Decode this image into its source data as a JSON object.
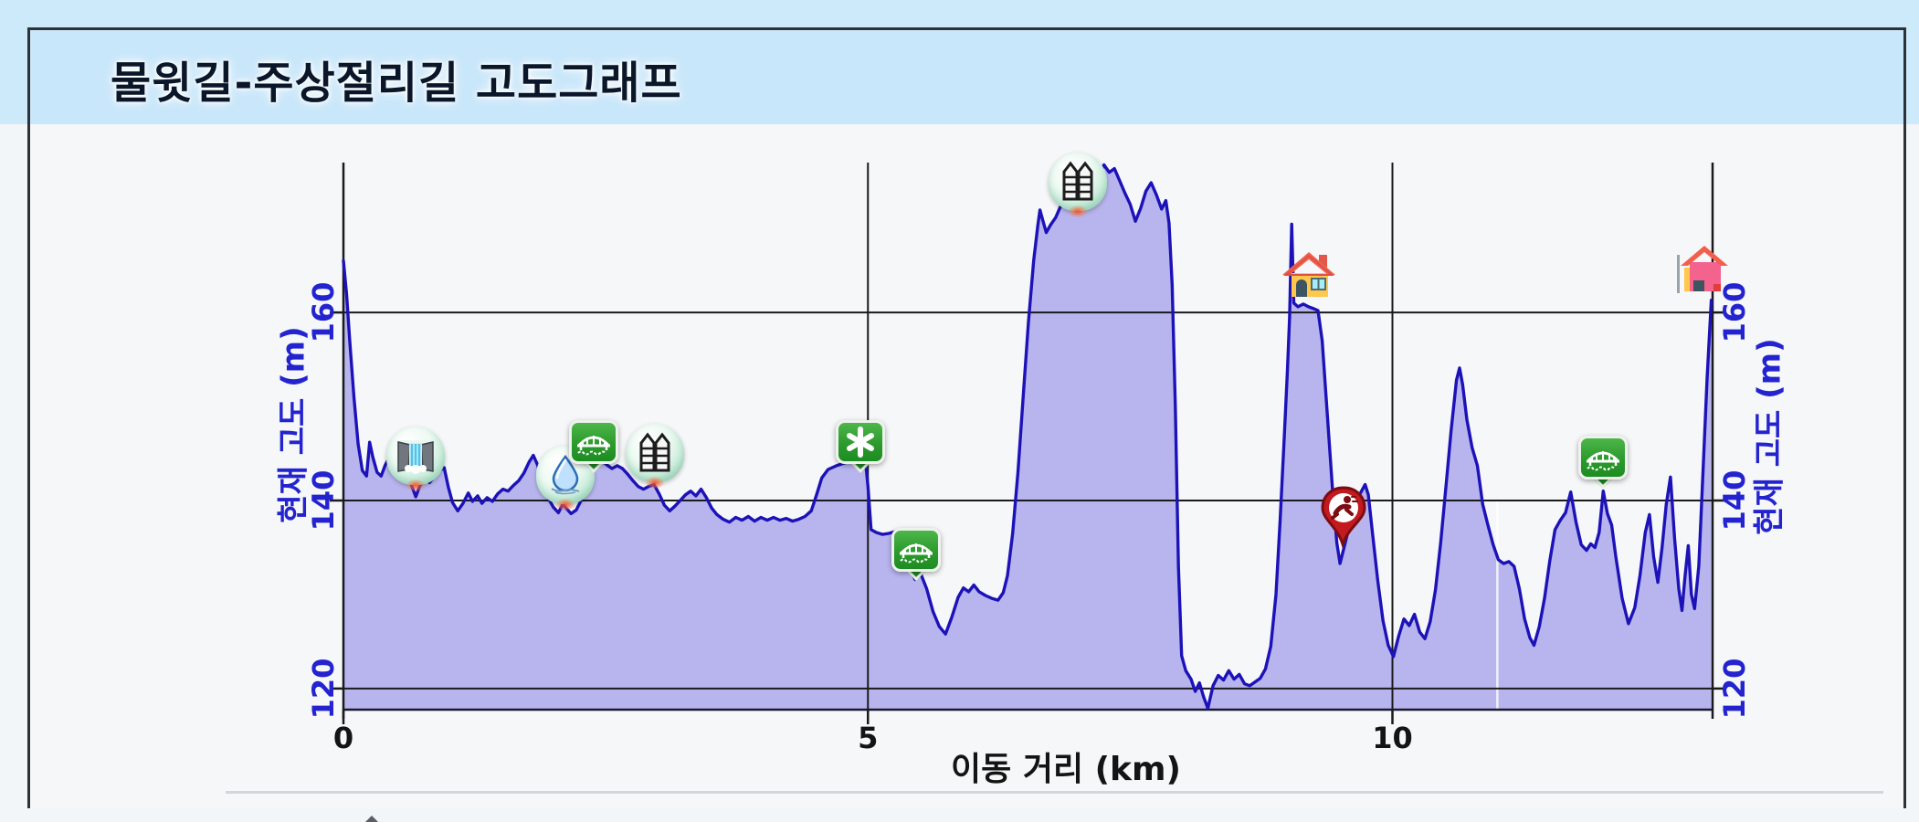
{
  "title": "물윗길-주상절리길 고도그래프",
  "colors": {
    "title_bar": "#c9e7fa",
    "page_top": "#cdeafb",
    "page_bottom": "#f3f6f9",
    "chart_bg": "#f6f7f9",
    "card_border": "#2b3238",
    "fill": "#b8b5ee",
    "line": "#1c12b8",
    "grid": "#1a1a1a",
    "minor_grid": "#ffffff",
    "tick_text": "#2323cf",
    "x_text": "#141414",
    "divider": "#d2d5d9"
  },
  "chart_data": {
    "type": "area",
    "title": "물윗길-주상절리길 고도그래프",
    "xlabel": "이동 거리 (km)",
    "ylabel_left": "현재 고도 (m)",
    "ylabel_right": "현재 고도 (m)",
    "x_ticks": [
      0,
      5,
      10
    ],
    "x_tick_labels": [
      "0",
      "5",
      "10"
    ],
    "y_ticks": [
      120,
      140,
      160
    ],
    "y_tick_labels": [
      "120",
      "140",
      "160"
    ],
    "xlim": [
      0,
      13.05
    ],
    "ylim": [
      117.8,
      176
    ],
    "grid": true,
    "minor_x_gridline_km": 11,
    "legend": "none",
    "profile": [
      [
        0.0,
        165.5
      ],
      [
        0.03,
        162
      ],
      [
        0.06,
        157
      ],
      [
        0.1,
        151
      ],
      [
        0.14,
        146
      ],
      [
        0.18,
        143.2
      ],
      [
        0.22,
        142.6
      ],
      [
        0.25,
        146.2
      ],
      [
        0.28,
        144.6
      ],
      [
        0.32,
        143.0
      ],
      [
        0.36,
        142.6
      ],
      [
        0.4,
        143.8
      ],
      [
        0.44,
        144.6
      ],
      [
        0.48,
        143.8
      ],
      [
        0.52,
        143.0
      ],
      [
        0.56,
        142.7
      ],
      [
        0.6,
        143.2
      ],
      [
        0.64,
        141.9
      ],
      [
        0.69,
        140.4
      ],
      [
        0.73,
        141.6
      ],
      [
        0.78,
        142.3
      ],
      [
        0.82,
        141.9
      ],
      [
        0.87,
        142.6
      ],
      [
        0.92,
        143.2
      ],
      [
        0.96,
        143.5
      ],
      [
        1.0,
        141.4
      ],
      [
        1.04,
        139.8
      ],
      [
        1.09,
        138.9
      ],
      [
        1.14,
        139.7
      ],
      [
        1.19,
        140.8
      ],
      [
        1.23,
        139.9
      ],
      [
        1.28,
        140.5
      ],
      [
        1.32,
        139.7
      ],
      [
        1.37,
        140.3
      ],
      [
        1.42,
        139.9
      ],
      [
        1.47,
        140.7
      ],
      [
        1.52,
        141.2
      ],
      [
        1.57,
        141.0
      ],
      [
        1.62,
        141.6
      ],
      [
        1.67,
        142.1
      ],
      [
        1.72,
        142.9
      ],
      [
        1.77,
        144.1
      ],
      [
        1.81,
        144.8
      ],
      [
        1.85,
        143.8
      ],
      [
        1.9,
        141.9
      ],
      [
        1.95,
        140.3
      ],
      [
        2.0,
        139.3
      ],
      [
        2.05,
        138.7
      ],
      [
        2.09,
        139.6
      ],
      [
        2.13,
        139.1
      ],
      [
        2.17,
        138.6
      ],
      [
        2.22,
        139.0
      ],
      [
        2.26,
        139.9
      ],
      [
        2.31,
        141.5
      ],
      [
        2.36,
        143.0
      ],
      [
        2.41,
        143.9
      ],
      [
        2.46,
        144.3
      ],
      [
        2.51,
        143.8
      ],
      [
        2.56,
        143.4
      ],
      [
        2.61,
        143.7
      ],
      [
        2.66,
        143.4
      ],
      [
        2.71,
        142.8
      ],
      [
        2.76,
        142.1
      ],
      [
        2.81,
        141.5
      ],
      [
        2.86,
        141.2
      ],
      [
        2.91,
        141.5
      ],
      [
        2.96,
        141.7
      ],
      [
        3.01,
        140.7
      ],
      [
        3.06,
        139.5
      ],
      [
        3.11,
        138.9
      ],
      [
        3.16,
        139.4
      ],
      [
        3.21,
        140.0
      ],
      [
        3.26,
        140.6
      ],
      [
        3.31,
        141.0
      ],
      [
        3.36,
        140.5
      ],
      [
        3.41,
        141.2
      ],
      [
        3.46,
        140.3
      ],
      [
        3.51,
        139.2
      ],
      [
        3.56,
        138.5
      ],
      [
        3.62,
        138.0
      ],
      [
        3.68,
        137.7
      ],
      [
        3.74,
        138.2
      ],
      [
        3.8,
        137.9
      ],
      [
        3.86,
        138.3
      ],
      [
        3.92,
        137.8
      ],
      [
        3.98,
        138.2
      ],
      [
        4.04,
        137.9
      ],
      [
        4.1,
        138.2
      ],
      [
        4.16,
        137.9
      ],
      [
        4.22,
        138.1
      ],
      [
        4.28,
        137.8
      ],
      [
        4.34,
        138.0
      ],
      [
        4.4,
        138.3
      ],
      [
        4.46,
        138.9
      ],
      [
        4.51,
        140.6
      ],
      [
        4.56,
        142.4
      ],
      [
        4.62,
        143.3
      ],
      [
        4.7,
        143.7
      ],
      [
        4.78,
        144.0
      ],
      [
        4.86,
        144.4
      ],
      [
        4.93,
        144.7
      ],
      [
        4.97,
        144.9
      ],
      [
        5.0,
        141.5
      ],
      [
        5.03,
        136.9
      ],
      [
        5.08,
        136.6
      ],
      [
        5.14,
        136.4
      ],
      [
        5.2,
        136.5
      ],
      [
        5.26,
        136.7
      ],
      [
        5.31,
        135.2
      ],
      [
        5.38,
        133.1
      ],
      [
        5.45,
        131.6
      ],
      [
        5.5,
        132.3
      ],
      [
        5.56,
        130.6
      ],
      [
        5.62,
        128.2
      ],
      [
        5.68,
        126.6
      ],
      [
        5.74,
        125.8
      ],
      [
        5.8,
        127.6
      ],
      [
        5.86,
        129.7
      ],
      [
        5.91,
        130.7
      ],
      [
        5.96,
        130.3
      ],
      [
        6.01,
        131.0
      ],
      [
        6.06,
        130.3
      ],
      [
        6.12,
        129.9
      ],
      [
        6.18,
        129.6
      ],
      [
        6.24,
        129.4
      ],
      [
        6.29,
        130.2
      ],
      [
        6.33,
        132.0
      ],
      [
        6.38,
        136.5
      ],
      [
        6.43,
        143.0
      ],
      [
        6.48,
        151.0
      ],
      [
        6.53,
        159.0
      ],
      [
        6.58,
        165.5
      ],
      [
        6.62,
        169.3
      ],
      [
        6.64,
        170.9
      ],
      [
        6.67,
        169.7
      ],
      [
        6.7,
        168.5
      ],
      [
        6.74,
        169.3
      ],
      [
        6.79,
        170.1
      ],
      [
        6.84,
        171.4
      ],
      [
        6.9,
        172.6
      ],
      [
        6.95,
        173.3
      ],
      [
        7.0,
        172.5
      ],
      [
        7.05,
        173.5
      ],
      [
        7.1,
        174.6
      ],
      [
        7.15,
        175.1
      ],
      [
        7.2,
        174.3
      ],
      [
        7.25,
        175.7
      ],
      [
        7.3,
        174.9
      ],
      [
        7.35,
        175.3
      ],
      [
        7.4,
        174.0
      ],
      [
        7.45,
        172.7
      ],
      [
        7.5,
        171.5
      ],
      [
        7.55,
        169.7
      ],
      [
        7.6,
        171.1
      ],
      [
        7.65,
        172.9
      ],
      [
        7.7,
        173.8
      ],
      [
        7.75,
        172.5
      ],
      [
        7.8,
        171.0
      ],
      [
        7.84,
        171.9
      ],
      [
        7.87,
        169.5
      ],
      [
        7.9,
        163.0
      ],
      [
        7.93,
        150.0
      ],
      [
        7.96,
        133.0
      ],
      [
        7.99,
        123.5
      ],
      [
        8.03,
        121.9
      ],
      [
        8.08,
        121.0
      ],
      [
        8.12,
        119.7
      ],
      [
        8.16,
        120.6
      ],
      [
        8.2,
        119.1
      ],
      [
        8.24,
        117.9
      ],
      [
        8.29,
        120.3
      ],
      [
        8.34,
        121.4
      ],
      [
        8.39,
        120.9
      ],
      [
        8.44,
        121.9
      ],
      [
        8.49,
        121.0
      ],
      [
        8.54,
        121.5
      ],
      [
        8.59,
        120.5
      ],
      [
        8.64,
        120.3
      ],
      [
        8.69,
        120.7
      ],
      [
        8.74,
        121.1
      ],
      [
        8.79,
        122.1
      ],
      [
        8.84,
        124.5
      ],
      [
        8.89,
        130.0
      ],
      [
        8.93,
        138.0
      ],
      [
        8.97,
        147.0
      ],
      [
        9.0,
        154.0
      ],
      [
        9.02,
        159.5
      ],
      [
        9.04,
        169.4
      ],
      [
        9.06,
        161.0
      ],
      [
        9.1,
        160.6
      ],
      [
        9.15,
        160.9
      ],
      [
        9.2,
        160.6
      ],
      [
        9.25,
        160.4
      ],
      [
        9.29,
        160.2
      ],
      [
        9.33,
        157.0
      ],
      [
        9.38,
        149.0
      ],
      [
        9.43,
        141.0
      ],
      [
        9.47,
        135.5
      ],
      [
        9.5,
        133.3
      ],
      [
        9.53,
        134.6
      ],
      [
        9.57,
        136.4
      ],
      [
        9.61,
        138.6
      ],
      [
        9.66,
        140.1
      ],
      [
        9.71,
        141.1
      ],
      [
        9.74,
        141.7
      ],
      [
        9.77,
        140.6
      ],
      [
        9.81,
        136.5
      ],
      [
        9.86,
        131.5
      ],
      [
        9.91,
        127.2
      ],
      [
        9.96,
        124.6
      ],
      [
        10.01,
        123.4
      ],
      [
        10.06,
        125.6
      ],
      [
        10.11,
        127.4
      ],
      [
        10.16,
        126.7
      ],
      [
        10.21,
        127.9
      ],
      [
        10.26,
        126.0
      ],
      [
        10.31,
        125.3
      ],
      [
        10.36,
        127.1
      ],
      [
        10.41,
        130.5
      ],
      [
        10.46,
        135.5
      ],
      [
        10.51,
        141.5
      ],
      [
        10.56,
        147.5
      ],
      [
        10.61,
        152.8
      ],
      [
        10.64,
        154.1
      ],
      [
        10.67,
        152.3
      ],
      [
        10.71,
        148.6
      ],
      [
        10.76,
        145.6
      ],
      [
        10.81,
        143.7
      ],
      [
        10.86,
        139.6
      ],
      [
        10.91,
        137.4
      ],
      [
        10.96,
        135.3
      ],
      [
        11.01,
        133.7
      ],
      [
        11.06,
        133.3
      ],
      [
        11.11,
        133.5
      ],
      [
        11.16,
        133.0
      ],
      [
        11.21,
        130.6
      ],
      [
        11.26,
        127.4
      ],
      [
        11.31,
        125.4
      ],
      [
        11.35,
        124.6
      ],
      [
        11.4,
        126.6
      ],
      [
        11.45,
        129.6
      ],
      [
        11.5,
        133.6
      ],
      [
        11.55,
        136.9
      ],
      [
        11.6,
        137.9
      ],
      [
        11.65,
        138.7
      ],
      [
        11.7,
        140.9
      ],
      [
        11.75,
        137.7
      ],
      [
        11.8,
        135.3
      ],
      [
        11.85,
        134.7
      ],
      [
        11.89,
        135.4
      ],
      [
        11.93,
        135.0
      ],
      [
        11.97,
        136.6
      ],
      [
        12.01,
        141.0
      ],
      [
        12.05,
        138.6
      ],
      [
        12.09,
        137.4
      ],
      [
        12.13,
        134.0
      ],
      [
        12.19,
        129.6
      ],
      [
        12.25,
        126.9
      ],
      [
        12.31,
        128.6
      ],
      [
        12.36,
        132.0
      ],
      [
        12.41,
        136.6
      ],
      [
        12.45,
        138.5
      ],
      [
        12.49,
        134.0
      ],
      [
        12.53,
        131.3
      ],
      [
        12.57,
        135.0
      ],
      [
        12.61,
        139.6
      ],
      [
        12.65,
        142.5
      ],
      [
        12.69,
        136.0
      ],
      [
        12.73,
        130.6
      ],
      [
        12.76,
        128.3
      ],
      [
        12.79,
        132.0
      ],
      [
        12.82,
        135.2
      ],
      [
        12.85,
        130.0
      ],
      [
        12.88,
        128.5
      ],
      [
        12.92,
        133.0
      ],
      [
        12.96,
        143.0
      ],
      [
        13.0,
        153.0
      ],
      [
        13.04,
        161.3
      ]
    ],
    "markers": [
      {
        "icon": "waterfall",
        "km": 0.69,
        "m": 144.8
      },
      {
        "icon": "waterdrop",
        "km": 2.12,
        "m": 142.7
      },
      {
        "icon": "bridge",
        "km": 2.39,
        "m": 146.2
      },
      {
        "icon": "pillars",
        "km": 2.97,
        "m": 145.1
      },
      {
        "icon": "asterisk",
        "km": 4.93,
        "m": 146.2
      },
      {
        "icon": "bridge",
        "km": 5.46,
        "m": 134.8
      },
      {
        "icon": "pillars",
        "km": 7.0,
        "m": 173.9
      },
      {
        "icon": "house-yellow",
        "km": 9.2,
        "m": 163.9
      },
      {
        "icon": "runner",
        "km": 9.53,
        "m": 138.1
      },
      {
        "icon": "bridge",
        "km": 12.01,
        "m": 144.6
      },
      {
        "icon": "house-pink",
        "km": 12.95,
        "m": 164.5
      }
    ]
  }
}
